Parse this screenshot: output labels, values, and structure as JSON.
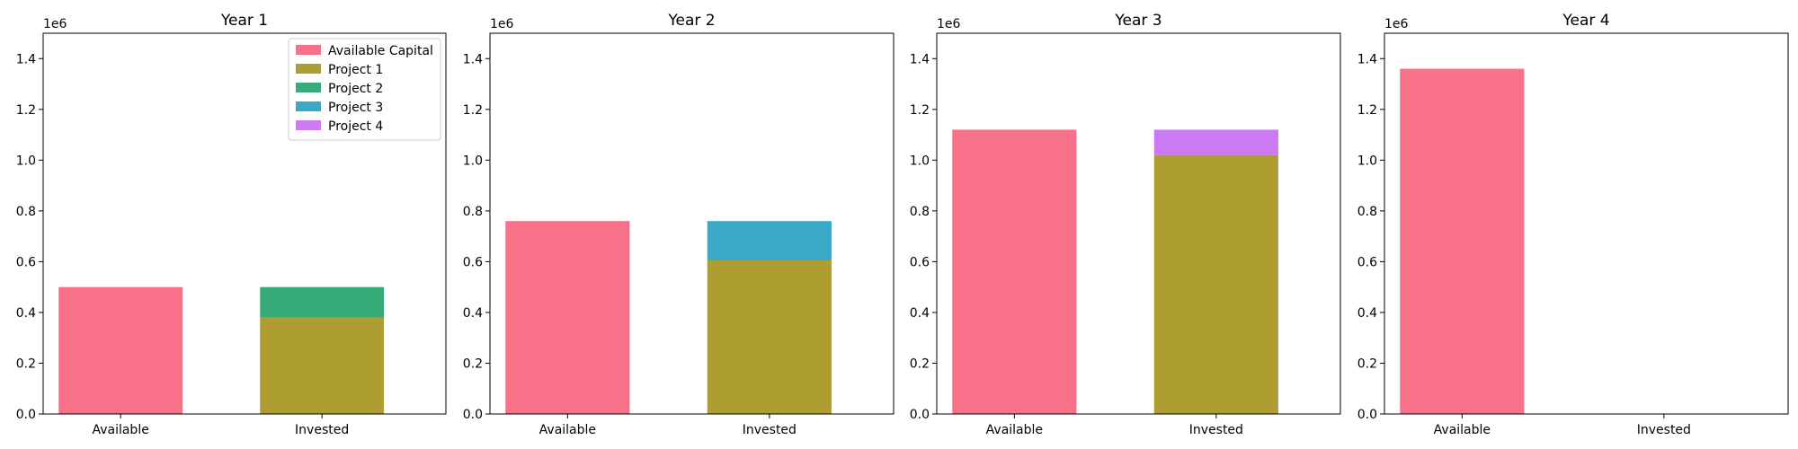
{
  "chart_data": {
    "type": "bar",
    "stacked": true,
    "layout": "1x4 subplots",
    "categories": [
      "Available",
      "Invested"
    ],
    "ylim": [
      0,
      1500000
    ],
    "y_ticks": [
      "0.0",
      "0.2",
      "0.4",
      "0.6",
      "0.8",
      "1.0",
      "1.2",
      "1.4"
    ],
    "y_tick_values": [
      0,
      200000,
      400000,
      600000,
      800000,
      1000000,
      1200000,
      1400000
    ],
    "y_offset_label": "1e6",
    "grid": false,
    "legend": {
      "placement": "top-right",
      "subplot": 0,
      "entries": [
        {
          "name": "Available Capital",
          "color": "#f77189"
        },
        {
          "name": "Project 1",
          "color": "#ae9d31"
        },
        {
          "name": "Project 2",
          "color": "#36ad78"
        },
        {
          "name": "Project 3",
          "color": "#3aa8c7"
        },
        {
          "name": "Project 4",
          "color": "#cc7af4"
        }
      ]
    },
    "subplots": [
      {
        "title": "Year 1",
        "available": 500000,
        "invested": [
          {
            "name": "Project 1",
            "value": 380000
          },
          {
            "name": "Project 2",
            "value": 120000
          }
        ]
      },
      {
        "title": "Year 2",
        "available": 760000,
        "invested": [
          {
            "name": "Project 1",
            "value": 605000
          },
          {
            "name": "Project 3",
            "value": 155000
          }
        ]
      },
      {
        "title": "Year 3",
        "available": 1120000,
        "invested": [
          {
            "name": "Project 1",
            "value": 1020000
          },
          {
            "name": "Project 4",
            "value": 100000
          }
        ]
      },
      {
        "title": "Year 4",
        "available": 1360000,
        "invested": []
      }
    ]
  }
}
